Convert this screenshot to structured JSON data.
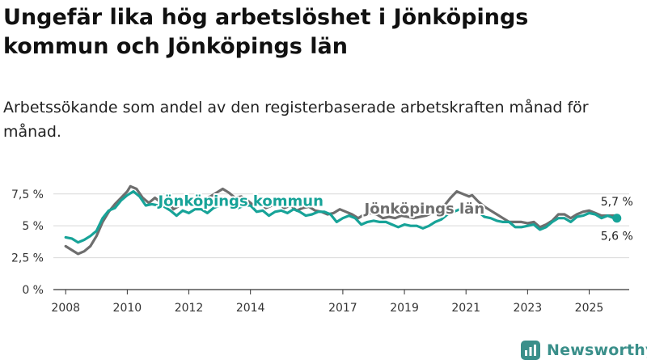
{
  "title": "Ungefär lika hög arbetslöshet i Jönköpings kommun och Jönköpings län",
  "subtitle": "Arbetssökande som andel av den registerbaserade arbetskraften månad för månad.",
  "brand": {
    "name": "Newsworthy",
    "icon": "newsworthy-logo-icon",
    "color": "#3a8f8a"
  },
  "chart_data": {
    "type": "line",
    "xlim": [
      2007.6,
      2026.3
    ],
    "ylim": [
      0,
      8.5
    ],
    "y_ticks": [
      0,
      2.5,
      5,
      7.5
    ],
    "y_tick_labels": [
      "0 %",
      "2,5 %",
      "5 %",
      "7,5 %"
    ],
    "x_ticks": [
      2008,
      2010,
      2012,
      2014,
      2017,
      2019,
      2021,
      2023,
      2025
    ],
    "x_tick_labels": [
      "2008",
      "2010",
      "2012",
      "2014",
      "2017",
      "2019",
      "2021",
      "2023",
      "2025"
    ],
    "grid": "horizontal",
    "series": [
      {
        "name": "Jönköpings län",
        "color": "#6e6e6e",
        "end_label": "5,7 %",
        "points": [
          [
            2008.0,
            3.4
          ],
          [
            2008.2,
            3.1
          ],
          [
            2008.4,
            2.8
          ],
          [
            2008.6,
            3.0
          ],
          [
            2008.8,
            3.4
          ],
          [
            2009.0,
            4.2
          ],
          [
            2009.2,
            5.3
          ],
          [
            2009.4,
            6.1
          ],
          [
            2009.6,
            6.7
          ],
          [
            2009.8,
            7.2
          ],
          [
            2010.0,
            7.7
          ],
          [
            2010.1,
            8.1
          ],
          [
            2010.3,
            7.9
          ],
          [
            2010.5,
            7.2
          ],
          [
            2010.7,
            6.8
          ],
          [
            2010.9,
            7.2
          ],
          [
            2011.1,
            6.8
          ],
          [
            2011.3,
            7.0
          ],
          [
            2011.5,
            6.3
          ],
          [
            2011.7,
            6.6
          ],
          [
            2011.9,
            6.8
          ],
          [
            2012.1,
            6.9
          ],
          [
            2012.3,
            6.6
          ],
          [
            2012.5,
            7.1
          ],
          [
            2012.7,
            7.3
          ],
          [
            2012.9,
            7.6
          ],
          [
            2013.1,
            7.9
          ],
          [
            2013.3,
            7.6
          ],
          [
            2013.5,
            7.2
          ],
          [
            2013.7,
            7.3
          ],
          [
            2013.9,
            7.0
          ],
          [
            2014.1,
            6.6
          ],
          [
            2014.3,
            6.8
          ],
          [
            2014.5,
            6.4
          ],
          [
            2014.7,
            6.6
          ],
          [
            2014.9,
            6.7
          ],
          [
            2015.1,
            6.4
          ],
          [
            2015.3,
            6.6
          ],
          [
            2015.5,
            6.2
          ],
          [
            2015.7,
            6.4
          ],
          [
            2015.9,
            6.5
          ],
          [
            2016.1,
            6.2
          ],
          [
            2016.3,
            6.1
          ],
          [
            2016.5,
            5.9
          ],
          [
            2016.7,
            6.0
          ],
          [
            2016.9,
            6.3
          ],
          [
            2017.1,
            6.1
          ],
          [
            2017.3,
            5.9
          ],
          [
            2017.5,
            5.6
          ],
          [
            2017.7,
            5.9
          ],
          [
            2017.9,
            6.0
          ],
          [
            2018.1,
            5.9
          ],
          [
            2018.3,
            5.6
          ],
          [
            2018.5,
            5.7
          ],
          [
            2018.7,
            5.6
          ],
          [
            2018.9,
            5.8
          ],
          [
            2019.1,
            5.7
          ],
          [
            2019.3,
            5.6
          ],
          [
            2019.5,
            5.7
          ],
          [
            2019.7,
            5.8
          ],
          [
            2019.9,
            6.0
          ],
          [
            2020.1,
            6.2
          ],
          [
            2020.3,
            6.6
          ],
          [
            2020.5,
            7.2
          ],
          [
            2020.7,
            7.7
          ],
          [
            2020.9,
            7.5
          ],
          [
            2021.1,
            7.3
          ],
          [
            2021.2,
            7.4
          ],
          [
            2021.4,
            6.9
          ],
          [
            2021.6,
            6.5
          ],
          [
            2021.8,
            6.2
          ],
          [
            2022.0,
            5.9
          ],
          [
            2022.2,
            5.6
          ],
          [
            2022.4,
            5.3
          ],
          [
            2022.6,
            5.3
          ],
          [
            2022.8,
            5.3
          ],
          [
            2023.0,
            5.2
          ],
          [
            2023.2,
            5.3
          ],
          [
            2023.4,
            4.9
          ],
          [
            2023.6,
            5.1
          ],
          [
            2023.8,
            5.4
          ],
          [
            2024.0,
            5.9
          ],
          [
            2024.2,
            5.9
          ],
          [
            2024.4,
            5.6
          ],
          [
            2024.6,
            5.9
          ],
          [
            2024.8,
            6.1
          ],
          [
            2025.0,
            6.2
          ],
          [
            2025.2,
            6.0
          ],
          [
            2025.4,
            5.8
          ],
          [
            2025.6,
            5.8
          ],
          [
            2025.8,
            5.8
          ],
          [
            2025.9,
            5.7
          ]
        ]
      },
      {
        "name": "Jönköpings kommun",
        "color": "#17a398",
        "end_label": "5,6 %",
        "points": [
          [
            2008.0,
            4.1
          ],
          [
            2008.2,
            4.0
          ],
          [
            2008.4,
            3.7
          ],
          [
            2008.6,
            3.9
          ],
          [
            2008.8,
            4.2
          ],
          [
            2009.0,
            4.6
          ],
          [
            2009.2,
            5.6
          ],
          [
            2009.4,
            6.2
          ],
          [
            2009.6,
            6.4
          ],
          [
            2009.8,
            7.0
          ],
          [
            2010.0,
            7.4
          ],
          [
            2010.2,
            7.7
          ],
          [
            2010.4,
            7.3
          ],
          [
            2010.6,
            6.6
          ],
          [
            2010.8,
            6.7
          ],
          [
            2011.0,
            6.6
          ],
          [
            2011.2,
            6.5
          ],
          [
            2011.4,
            6.2
          ],
          [
            2011.6,
            5.8
          ],
          [
            2011.8,
            6.2
          ],
          [
            2012.0,
            6.0
          ],
          [
            2012.2,
            6.3
          ],
          [
            2012.4,
            6.3
          ],
          [
            2012.6,
            6.0
          ],
          [
            2012.8,
            6.4
          ],
          [
            2013.0,
            6.6
          ],
          [
            2013.2,
            6.9
          ],
          [
            2013.4,
            6.9
          ],
          [
            2013.6,
            6.4
          ],
          [
            2013.8,
            6.6
          ],
          [
            2014.0,
            6.6
          ],
          [
            2014.2,
            6.1
          ],
          [
            2014.4,
            6.2
          ],
          [
            2014.6,
            5.8
          ],
          [
            2014.8,
            6.1
          ],
          [
            2015.0,
            6.2
          ],
          [
            2015.2,
            6.0
          ],
          [
            2015.4,
            6.3
          ],
          [
            2015.6,
            6.1
          ],
          [
            2015.8,
            5.8
          ],
          [
            2016.0,
            5.9
          ],
          [
            2016.2,
            6.1
          ],
          [
            2016.4,
            6.1
          ],
          [
            2016.6,
            5.9
          ],
          [
            2016.8,
            5.3
          ],
          [
            2017.0,
            5.6
          ],
          [
            2017.2,
            5.8
          ],
          [
            2017.4,
            5.6
          ],
          [
            2017.6,
            5.1
          ],
          [
            2017.8,
            5.3
          ],
          [
            2018.0,
            5.4
          ],
          [
            2018.2,
            5.3
          ],
          [
            2018.4,
            5.3
          ],
          [
            2018.6,
            5.1
          ],
          [
            2018.8,
            4.9
          ],
          [
            2019.0,
            5.1
          ],
          [
            2019.2,
            5.0
          ],
          [
            2019.4,
            5.0
          ],
          [
            2019.6,
            4.8
          ],
          [
            2019.8,
            5.0
          ],
          [
            2020.0,
            5.3
          ],
          [
            2020.2,
            5.5
          ],
          [
            2020.4,
            5.9
          ],
          [
            2020.6,
            6.1
          ],
          [
            2020.8,
            6.3
          ],
          [
            2021.0,
            6.4
          ],
          [
            2021.2,
            6.3
          ],
          [
            2021.4,
            6.1
          ],
          [
            2021.6,
            5.7
          ],
          [
            2021.8,
            5.6
          ],
          [
            2022.0,
            5.4
          ],
          [
            2022.2,
            5.3
          ],
          [
            2022.4,
            5.3
          ],
          [
            2022.6,
            4.9
          ],
          [
            2022.8,
            4.9
          ],
          [
            2023.0,
            5.0
          ],
          [
            2023.2,
            5.1
          ],
          [
            2023.4,
            4.7
          ],
          [
            2023.6,
            4.9
          ],
          [
            2023.8,
            5.3
          ],
          [
            2024.0,
            5.6
          ],
          [
            2024.2,
            5.6
          ],
          [
            2024.4,
            5.3
          ],
          [
            2024.6,
            5.7
          ],
          [
            2024.8,
            5.8
          ],
          [
            2025.0,
            6.0
          ],
          [
            2025.2,
            5.9
          ],
          [
            2025.4,
            5.6
          ],
          [
            2025.6,
            5.8
          ],
          [
            2025.8,
            5.6
          ],
          [
            2025.9,
            5.6
          ]
        ]
      }
    ]
  }
}
